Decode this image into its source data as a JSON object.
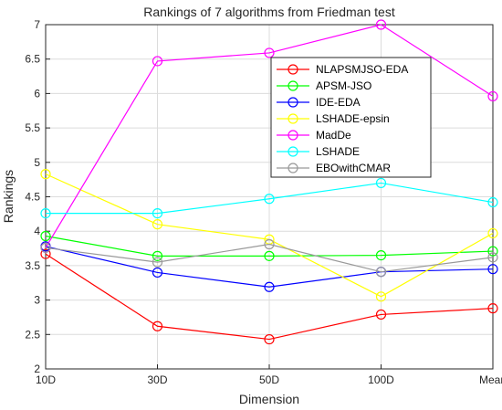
{
  "chart_data": {
    "type": "line",
    "title": "Rankings of 7 algorithms from Friedman test",
    "xlabel": "Dimension",
    "ylabel": "Rankings",
    "categories": [
      "10D",
      "30D",
      "50D",
      "100D",
      "Mean"
    ],
    "ylim": [
      2,
      7
    ],
    "yticks": [
      "2",
      "2.5",
      "3",
      "3.5",
      "4",
      "4.5",
      "5",
      "5.5",
      "6",
      "6.5",
      "7"
    ],
    "grid": true,
    "legend_position": "top-right",
    "marker": "circle",
    "series": [
      {
        "name": "NLAPSMJSO-EDA",
        "color": "#ff0000",
        "values": [
          3.67,
          2.62,
          2.43,
          2.79,
          2.88
        ]
      },
      {
        "name": "APSM-JSO",
        "color": "#00ff00",
        "values": [
          3.93,
          3.64,
          3.64,
          3.65,
          3.71
        ]
      },
      {
        "name": "IDE-EDA",
        "color": "#0000ff",
        "values": [
          3.78,
          3.4,
          3.19,
          3.41,
          3.45
        ]
      },
      {
        "name": "LSHADE-epsin",
        "color": "#ffff00",
        "values": [
          4.83,
          4.1,
          3.88,
          3.05,
          3.97
        ]
      },
      {
        "name": "MadDe",
        "color": "#ff00ff",
        "values": [
          3.76,
          6.47,
          6.59,
          7.0,
          5.96
        ]
      },
      {
        "name": "LSHADE",
        "color": "#00ffff",
        "values": [
          4.26,
          4.26,
          4.47,
          4.7,
          4.42
        ]
      },
      {
        "name": "EBOwithCMAR",
        "color": "#999999",
        "values": [
          3.76,
          3.55,
          3.81,
          3.41,
          3.62
        ]
      }
    ]
  }
}
